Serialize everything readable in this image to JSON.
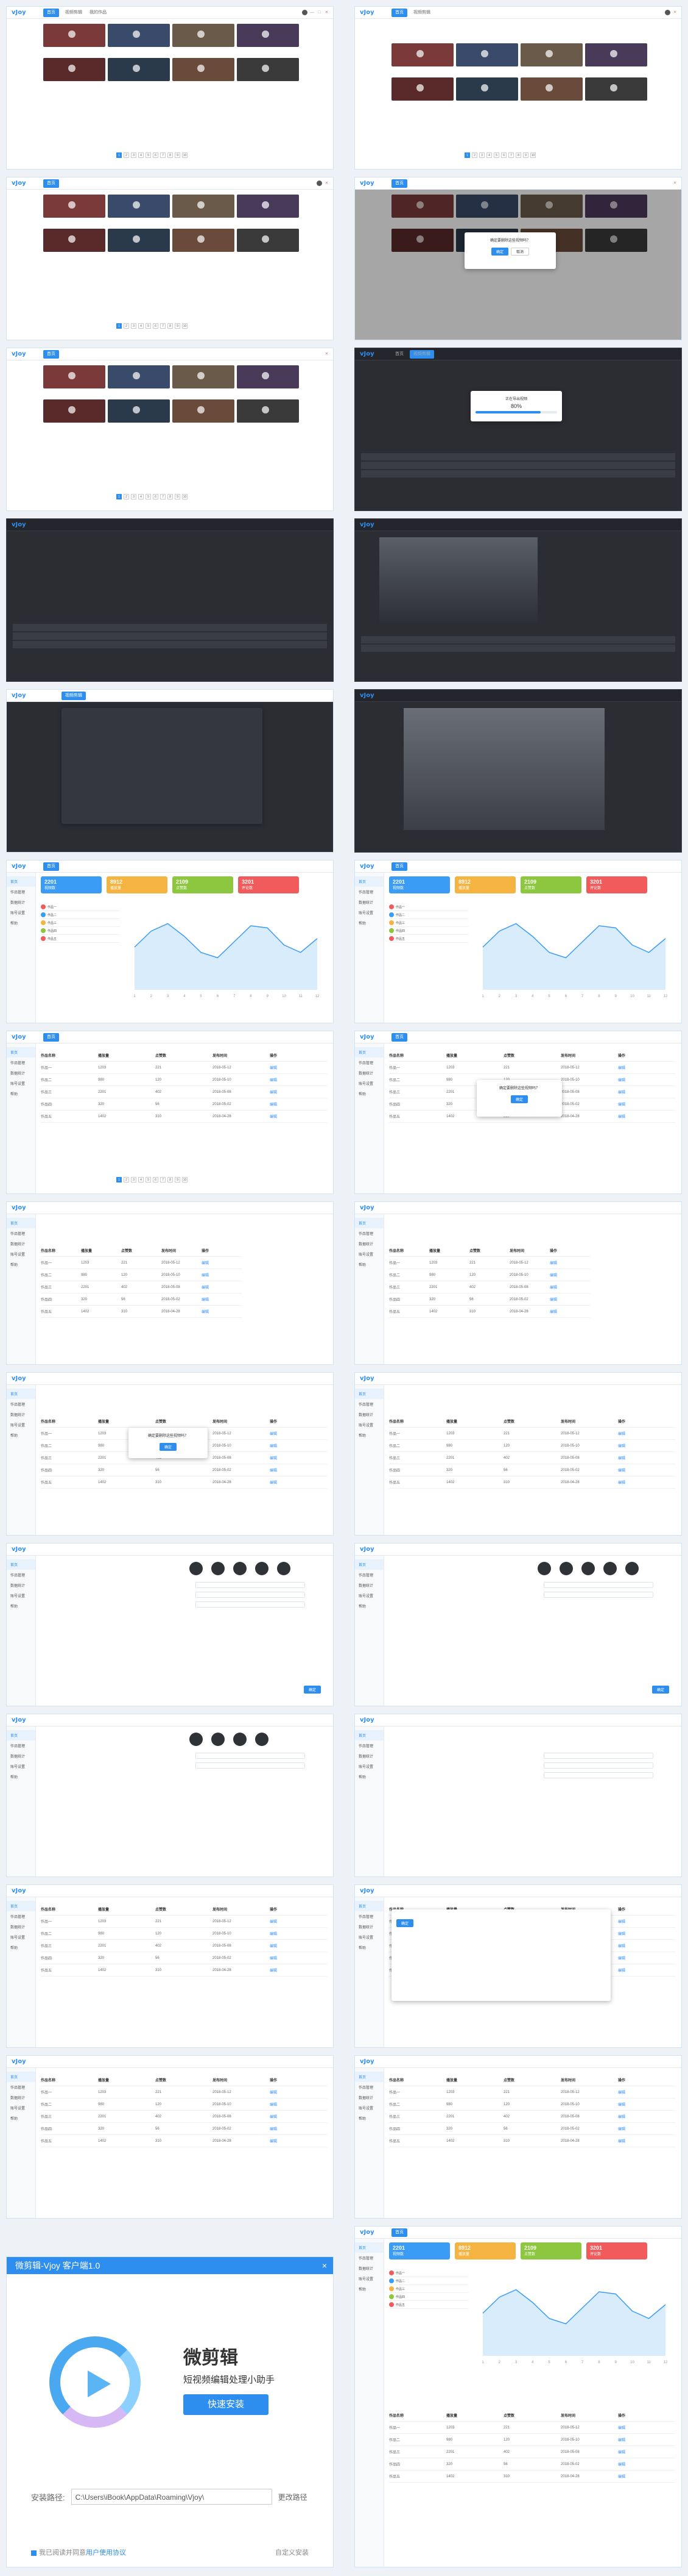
{
  "app": {
    "logo": "vJoy",
    "tabs": [
      "首页",
      "视频剪辑",
      "我的作品"
    ],
    "window_buttons": [
      "—",
      "□",
      "×"
    ]
  },
  "pager": [
    "1",
    "2",
    "3",
    "4",
    "5",
    "6",
    "7",
    "8",
    "9",
    "10"
  ],
  "dialogs": {
    "confirm_delete": "确定要删除这些视频吗？",
    "progress": "80%",
    "ok": "确定",
    "cancel": "取消",
    "progress_label": "正在导出视频"
  },
  "dashboard": {
    "cards": [
      {
        "label": "视频数",
        "value": "2201",
        "color": "#3a9cf5"
      },
      {
        "label": "播放量",
        "value": "8912",
        "color": "#f5b342"
      },
      {
        "label": "点赞数",
        "value": "2109",
        "color": "#8dc63f"
      },
      {
        "label": "评论数",
        "value": "3201",
        "color": "#f25b5b"
      }
    ],
    "side": [
      "首页",
      "作品管理",
      "数据统计",
      "账号设置",
      "帮助"
    ]
  },
  "chart_data": {
    "type": "area",
    "x": [
      "1",
      "2",
      "3",
      "4",
      "5",
      "6",
      "7",
      "8",
      "9",
      "10",
      "11",
      "12"
    ],
    "series": [
      {
        "values": [
          40,
          55,
          62,
          50,
          35,
          30,
          45,
          60,
          58,
          42,
          35,
          48
        ]
      }
    ],
    "ylim": [
      0,
      80
    ]
  },
  "table": {
    "headers": [
      "作品名称",
      "播放量",
      "点赞数",
      "发布时间",
      "操作"
    ],
    "rows": [
      [
        "作品一",
        "1203",
        "221",
        "2018-05-12",
        "编辑"
      ],
      [
        "作品二",
        "980",
        "120",
        "2018-05-10",
        "编辑"
      ],
      [
        "作品三",
        "2201",
        "402",
        "2018-05-08",
        "编辑"
      ],
      [
        "作品四",
        "320",
        "56",
        "2018-05-02",
        "编辑"
      ],
      [
        "作品五",
        "1402",
        "310",
        "2018-04-28",
        "编辑"
      ]
    ]
  },
  "installer": {
    "title": "微剪辑-Vjoy 客户端1.0",
    "close": "×",
    "name": "微剪辑",
    "subtitle": "短视频编辑处理小助手",
    "button": "快速安装",
    "path_label": "安装路径:",
    "path": "C:\\Users\\iBook\\AppData\\Roaming\\Vjoy\\",
    "browse": "更改路径",
    "agree_prefix": "我已阅读并同意",
    "agree_link": "用户使用协议",
    "custom": "自定义安装"
  }
}
